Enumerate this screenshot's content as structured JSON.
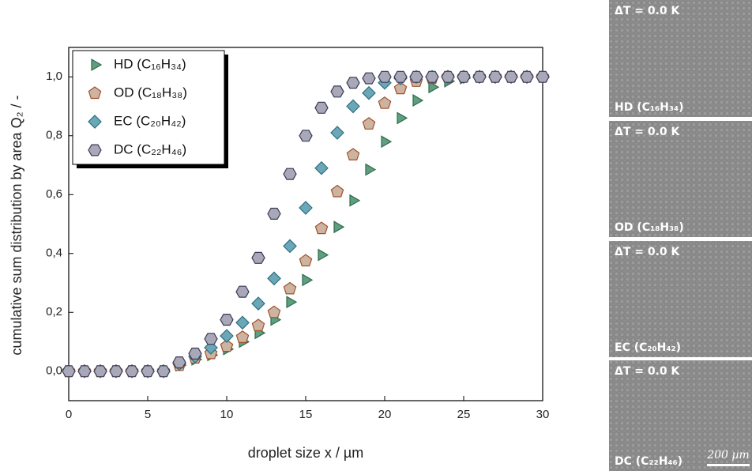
{
  "chart_data": {
    "type": "scatter",
    "xlabel": "droplet size x / µm",
    "ylabel": "cumulative sum distribution by area Q₂ / -",
    "x": [
      0,
      1,
      2,
      3,
      4,
      5,
      6,
      7,
      8,
      9,
      10,
      11,
      12,
      13,
      14,
      15,
      16,
      17,
      18,
      19,
      20,
      21,
      22,
      23,
      24,
      25,
      26,
      27,
      28,
      29,
      30
    ],
    "xlim": [
      0,
      30
    ],
    "xticks": [
      0,
      5,
      10,
      15,
      20,
      25,
      30
    ],
    "ylim": [
      -0.1,
      1.1
    ],
    "yticks": [
      {
        "value": 0,
        "label": "0,0"
      },
      {
        "value": 0.2,
        "label": "0,2"
      },
      {
        "value": 0.4,
        "label": "0,4"
      },
      {
        "value": 0.6,
        "label": "0,6"
      },
      {
        "value": 0.8,
        "label": "0,8"
      },
      {
        "value": 1,
        "label": "1,0"
      }
    ],
    "legend": "upper left",
    "series": [
      {
        "name": "HD (C₁₆H₃₄)",
        "color": "#5f9e7f",
        "edgecolor": "#2e6b4f",
        "marker": "triangle-right",
        "values": [
          0,
          0,
          0,
          0,
          0,
          0,
          0,
          0.02,
          0.04,
          0.055,
          0.075,
          0.1,
          0.13,
          0.175,
          0.235,
          0.31,
          0.395,
          0.49,
          0.58,
          0.685,
          0.78,
          0.86,
          0.92,
          0.965,
          0.985,
          0.995,
          1,
          1,
          1,
          1,
          1
        ]
      },
      {
        "name": "OD (C₁₈H₃₈)",
        "color": "#cdb4a0",
        "edgecolor": "#a0522d",
        "marker": "pentagon",
        "values": [
          0,
          0,
          0,
          0,
          0,
          0,
          0,
          0.02,
          0.045,
          0.06,
          0.085,
          0.115,
          0.155,
          0.2,
          0.28,
          0.375,
          0.485,
          0.61,
          0.735,
          0.84,
          0.91,
          0.96,
          0.985,
          0.995,
          1,
          1,
          1,
          1,
          1,
          1,
          1
        ]
      },
      {
        "name": "EC (C₂₀H₄₂)",
        "color": "#6aa8b8",
        "edgecolor": "#2f6f80",
        "marker": "diamond",
        "values": [
          0,
          0,
          0,
          0,
          0,
          0,
          0,
          0.025,
          0.05,
          0.08,
          0.12,
          0.165,
          0.23,
          0.315,
          0.425,
          0.555,
          0.69,
          0.81,
          0.9,
          0.945,
          0.98,
          0.995,
          1,
          1,
          1,
          1,
          1,
          1,
          1,
          1,
          1
        ]
      },
      {
        "name": "DC (C₂₂H₄₆)",
        "color": "#a8a8b8",
        "edgecolor": "#3a3a55",
        "marker": "hexagon",
        "values": [
          0,
          0,
          0,
          0,
          0,
          0,
          0,
          0.03,
          0.06,
          0.11,
          0.175,
          0.27,
          0.385,
          0.535,
          0.67,
          0.8,
          0.895,
          0.95,
          0.98,
          0.995,
          1,
          1,
          1,
          1,
          1,
          1,
          1,
          1,
          1,
          1,
          1
        ]
      }
    ]
  },
  "panels": [
    {
      "top": "ΔT = 0.0 K",
      "bottom": "HD (C₁₆H₃₄)"
    },
    {
      "top": "ΔT = 0.0 K",
      "bottom": "OD (C₁₈H₃₈)"
    },
    {
      "top": "ΔT = 0.0 K",
      "bottom": "EC (C₂₀H₄₂)"
    },
    {
      "top": "ΔT = 0.0 K",
      "bottom": "DC (C₂₂H₄₆)",
      "scale": "200 µm"
    }
  ]
}
